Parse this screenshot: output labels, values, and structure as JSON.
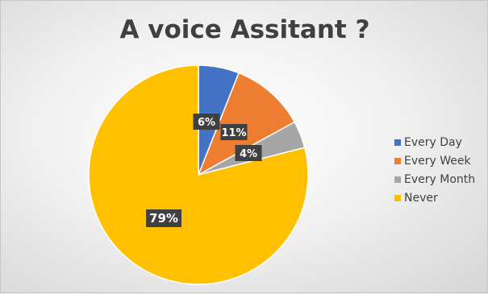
{
  "chart_data": {
    "type": "pie",
    "title": "A voice Assitant ?",
    "categories": [
      "Every Day",
      "Every Week",
      "Every Month",
      "Never"
    ],
    "values": [
      6,
      11,
      4,
      79
    ],
    "labels": [
      "6%",
      "11%",
      "4%",
      "79%"
    ],
    "colors": [
      "#4472c4",
      "#ed7d31",
      "#a5a5a5",
      "#ffc000"
    ],
    "legend_position": "right"
  }
}
